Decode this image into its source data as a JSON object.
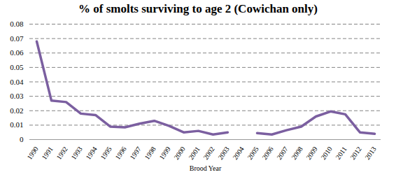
{
  "chart_data": {
    "type": "line",
    "title": "% of smolts surviving to age 2  (Cowichan only)",
    "x_label": "Brood Year",
    "categories": [
      "1990",
      "1991",
      "1992",
      "1993",
      "1994",
      "1995",
      "1996",
      "1997",
      "1998",
      "1999",
      "2000",
      "2001",
      "2002",
      "2003",
      "2004",
      "2005",
      "2006",
      "2007",
      "2008",
      "2009",
      "2010",
      "2011",
      "2012",
      "2013"
    ],
    "values": [
      0.068,
      0.027,
      0.026,
      0.018,
      0.017,
      0.009,
      0.0085,
      0.011,
      0.013,
      0.0095,
      0.005,
      0.006,
      0.0035,
      0.005,
      null,
      0.0045,
      0.0035,
      0.0065,
      0.009,
      0.016,
      0.0195,
      0.0175,
      0.005,
      0.004
    ],
    "color": "#7b5fa0",
    "ylim": [
      0,
      0.08
    ],
    "yticks": [
      0,
      0.01,
      0.02,
      0.03,
      0.04,
      0.05,
      0.06,
      0.07,
      0.08
    ],
    "grid": true
  }
}
